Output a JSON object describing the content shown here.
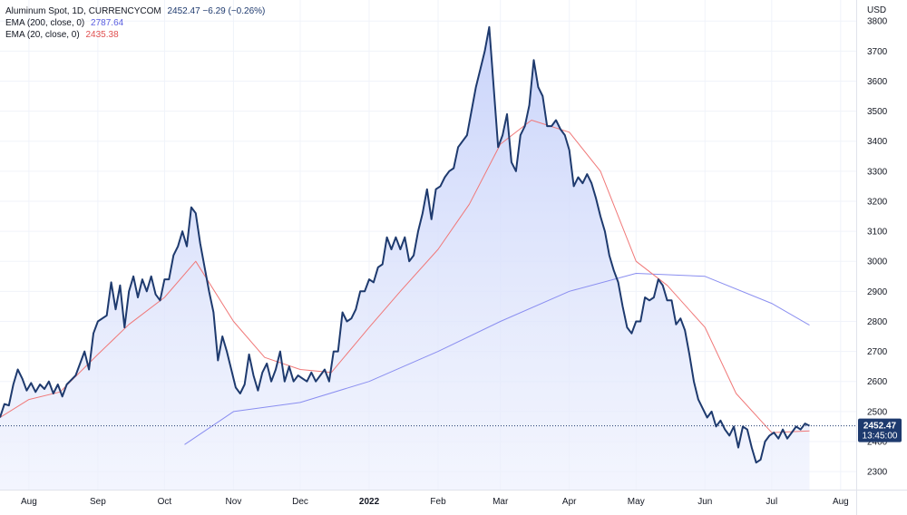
{
  "legend": {
    "main_label": "Aluminum Spot, 1D, CURRENCYCOM",
    "main_values": "2452.47  −6.29 (−0.26%)",
    "ema200_label": "EMA (200, close, 0)",
    "ema200_value": "2787.64",
    "ema20_label": "EMA (20, close, 0)",
    "ema20_value": "2435.38"
  },
  "price_tag": {
    "price": "2452.47",
    "countdown": "13:45:00"
  },
  "colors": {
    "price_line": "#1e3a6e",
    "area_top": "#c7d2fa",
    "area_bottom": "#eef1fd",
    "ema20": "#f07878",
    "ema200": "#8a8ef0",
    "tag_bg": "#1e3a6e",
    "grid": "#f0f3fa",
    "axis_border": "#e0e3eb"
  },
  "chart_data": {
    "type": "line",
    "ylabel": "USD",
    "ylim": [
      2240,
      3870
    ],
    "yticks": [
      2300,
      2400,
      2500,
      2600,
      2700,
      2800,
      2900,
      3000,
      3100,
      3200,
      3300,
      3400,
      3500,
      3600,
      3700,
      3800
    ],
    "xticks": [
      "Aug",
      "Sep",
      "Oct",
      "Nov",
      "Dec",
      "2022",
      "Feb",
      "Mar",
      "Apr",
      "May",
      "Jun",
      "Jul",
      "Aug"
    ],
    "xlim": [
      "2021-07-19",
      "2022-08-08"
    ],
    "x_tick_dates": [
      "2021-08-01",
      "2021-09-01",
      "2021-10-01",
      "2021-11-01",
      "2021-12-01",
      "2022-01-01",
      "2022-02-01",
      "2022-03-01",
      "2022-04-01",
      "2022-05-01",
      "2022-06-01",
      "2022-07-01",
      "2022-08-01"
    ],
    "last_price": 2452.47,
    "grid": true,
    "series": [
      {
        "name": "Aluminum Spot",
        "style": "area",
        "points": [
          [
            "2021-07-19",
            2480
          ],
          [
            "2021-07-21",
            2525
          ],
          [
            "2021-07-23",
            2520
          ],
          [
            "2021-07-25",
            2590
          ],
          [
            "2021-07-27",
            2640
          ],
          [
            "2021-07-29",
            2610
          ],
          [
            "2021-07-31",
            2570
          ],
          [
            "2021-08-02",
            2595
          ],
          [
            "2021-08-04",
            2565
          ],
          [
            "2021-08-06",
            2590
          ],
          [
            "2021-08-08",
            2575
          ],
          [
            "2021-08-10",
            2600
          ],
          [
            "2021-08-12",
            2560
          ],
          [
            "2021-08-14",
            2590
          ],
          [
            "2021-08-16",
            2550
          ],
          [
            "2021-08-18",
            2590
          ],
          [
            "2021-08-20",
            2605
          ],
          [
            "2021-08-22",
            2620
          ],
          [
            "2021-08-24",
            2660
          ],
          [
            "2021-08-26",
            2700
          ],
          [
            "2021-08-28",
            2640
          ],
          [
            "2021-08-30",
            2760
          ],
          [
            "2021-09-01",
            2800
          ],
          [
            "2021-09-03",
            2810
          ],
          [
            "2021-09-05",
            2820
          ],
          [
            "2021-09-07",
            2930
          ],
          [
            "2021-09-09",
            2840
          ],
          [
            "2021-09-11",
            2920
          ],
          [
            "2021-09-13",
            2780
          ],
          [
            "2021-09-15",
            2900
          ],
          [
            "2021-09-17",
            2950
          ],
          [
            "2021-09-19",
            2880
          ],
          [
            "2021-09-21",
            2940
          ],
          [
            "2021-09-23",
            2900
          ],
          [
            "2021-09-25",
            2950
          ],
          [
            "2021-09-27",
            2890
          ],
          [
            "2021-09-29",
            2870
          ],
          [
            "2021-10-01",
            2940
          ],
          [
            "2021-10-03",
            2940
          ],
          [
            "2021-10-05",
            3020
          ],
          [
            "2021-10-07",
            3050
          ],
          [
            "2021-10-09",
            3100
          ],
          [
            "2021-10-11",
            3050
          ],
          [
            "2021-10-13",
            3180
          ],
          [
            "2021-10-15",
            3160
          ],
          [
            "2021-10-17",
            3060
          ],
          [
            "2021-10-19",
            2980
          ],
          [
            "2021-10-21",
            2900
          ],
          [
            "2021-10-23",
            2830
          ],
          [
            "2021-10-25",
            2670
          ],
          [
            "2021-10-27",
            2750
          ],
          [
            "2021-10-29",
            2700
          ],
          [
            "2021-10-31",
            2640
          ],
          [
            "2021-11-02",
            2580
          ],
          [
            "2021-11-04",
            2560
          ],
          [
            "2021-11-06",
            2590
          ],
          [
            "2021-11-08",
            2690
          ],
          [
            "2021-11-10",
            2620
          ],
          [
            "2021-11-12",
            2570
          ],
          [
            "2021-11-14",
            2630
          ],
          [
            "2021-11-16",
            2660
          ],
          [
            "2021-11-18",
            2600
          ],
          [
            "2021-11-20",
            2640
          ],
          [
            "2021-11-22",
            2700
          ],
          [
            "2021-11-24",
            2600
          ],
          [
            "2021-11-26",
            2650
          ],
          [
            "2021-11-28",
            2600
          ],
          [
            "2021-11-30",
            2620
          ],
          [
            "2021-12-02",
            2610
          ],
          [
            "2021-12-04",
            2600
          ],
          [
            "2021-12-06",
            2630
          ],
          [
            "2021-12-08",
            2600
          ],
          [
            "2021-12-10",
            2620
          ],
          [
            "2021-12-12",
            2640
          ],
          [
            "2021-12-14",
            2600
          ],
          [
            "2021-12-16",
            2700
          ],
          [
            "2021-12-18",
            2700
          ],
          [
            "2021-12-20",
            2830
          ],
          [
            "2021-12-22",
            2800
          ],
          [
            "2021-12-24",
            2810
          ],
          [
            "2021-12-26",
            2840
          ],
          [
            "2021-12-28",
            2900
          ],
          [
            "2021-12-30",
            2900
          ],
          [
            "2022-01-01",
            2940
          ],
          [
            "2022-01-03",
            2930
          ],
          [
            "2022-01-05",
            2980
          ],
          [
            "2022-01-07",
            2990
          ],
          [
            "2022-01-09",
            3080
          ],
          [
            "2022-01-11",
            3040
          ],
          [
            "2022-01-13",
            3080
          ],
          [
            "2022-01-15",
            3040
          ],
          [
            "2022-01-17",
            3080
          ],
          [
            "2022-01-19",
            3000
          ],
          [
            "2022-01-21",
            3020
          ],
          [
            "2022-01-23",
            3100
          ],
          [
            "2022-01-25",
            3160
          ],
          [
            "2022-01-27",
            3240
          ],
          [
            "2022-01-29",
            3140
          ],
          [
            "2022-01-31",
            3240
          ],
          [
            "2022-02-02",
            3250
          ],
          [
            "2022-02-04",
            3280
          ],
          [
            "2022-02-06",
            3300
          ],
          [
            "2022-02-08",
            3310
          ],
          [
            "2022-02-10",
            3380
          ],
          [
            "2022-02-12",
            3400
          ],
          [
            "2022-02-14",
            3420
          ],
          [
            "2022-02-16",
            3500
          ],
          [
            "2022-02-18",
            3580
          ],
          [
            "2022-02-20",
            3640
          ],
          [
            "2022-02-22",
            3700
          ],
          [
            "2022-02-24",
            3780
          ],
          [
            "2022-02-26",
            3580
          ],
          [
            "2022-02-28",
            3380
          ],
          [
            "2022-03-02",
            3420
          ],
          [
            "2022-03-04",
            3490
          ],
          [
            "2022-03-06",
            3330
          ],
          [
            "2022-03-08",
            3300
          ],
          [
            "2022-03-10",
            3420
          ],
          [
            "2022-03-12",
            3450
          ],
          [
            "2022-03-14",
            3520
          ],
          [
            "2022-03-16",
            3670
          ],
          [
            "2022-03-18",
            3580
          ],
          [
            "2022-03-20",
            3550
          ],
          [
            "2022-03-22",
            3450
          ],
          [
            "2022-03-24",
            3450
          ],
          [
            "2022-03-26",
            3470
          ],
          [
            "2022-03-28",
            3440
          ],
          [
            "2022-03-30",
            3420
          ],
          [
            "2022-04-01",
            3370
          ],
          [
            "2022-04-03",
            3250
          ],
          [
            "2022-04-05",
            3280
          ],
          [
            "2022-04-07",
            3260
          ],
          [
            "2022-04-09",
            3290
          ],
          [
            "2022-04-11",
            3260
          ],
          [
            "2022-04-13",
            3210
          ],
          [
            "2022-04-15",
            3150
          ],
          [
            "2022-04-17",
            3100
          ],
          [
            "2022-04-19",
            3020
          ],
          [
            "2022-04-21",
            2970
          ],
          [
            "2022-04-23",
            2930
          ],
          [
            "2022-04-25",
            2850
          ],
          [
            "2022-04-27",
            2780
          ],
          [
            "2022-04-29",
            2760
          ],
          [
            "2022-05-01",
            2800
          ],
          [
            "2022-05-03",
            2800
          ],
          [
            "2022-05-05",
            2880
          ],
          [
            "2022-05-07",
            2870
          ],
          [
            "2022-05-09",
            2880
          ],
          [
            "2022-05-11",
            2940
          ],
          [
            "2022-05-13",
            2920
          ],
          [
            "2022-05-15",
            2870
          ],
          [
            "2022-05-17",
            2870
          ],
          [
            "2022-05-19",
            2790
          ],
          [
            "2022-05-21",
            2810
          ],
          [
            "2022-05-23",
            2770
          ],
          [
            "2022-05-25",
            2690
          ],
          [
            "2022-05-27",
            2600
          ],
          [
            "2022-05-29",
            2540
          ],
          [
            "2022-05-31",
            2510
          ],
          [
            "2022-06-02",
            2480
          ],
          [
            "2022-06-04",
            2500
          ],
          [
            "2022-06-06",
            2450
          ],
          [
            "2022-06-08",
            2470
          ],
          [
            "2022-06-10",
            2440
          ],
          [
            "2022-06-12",
            2420
          ],
          [
            "2022-06-14",
            2450
          ],
          [
            "2022-06-16",
            2380
          ],
          [
            "2022-06-18",
            2450
          ],
          [
            "2022-06-20",
            2440
          ],
          [
            "2022-06-22",
            2380
          ],
          [
            "2022-06-24",
            2330
          ],
          [
            "2022-06-26",
            2340
          ],
          [
            "2022-06-28",
            2400
          ],
          [
            "2022-06-30",
            2420
          ],
          [
            "2022-07-02",
            2430
          ],
          [
            "2022-07-04",
            2410
          ],
          [
            "2022-07-06",
            2440
          ],
          [
            "2022-07-08",
            2410
          ],
          [
            "2022-07-10",
            2430
          ],
          [
            "2022-07-12",
            2450
          ],
          [
            "2022-07-14",
            2440
          ],
          [
            "2022-07-16",
            2460
          ],
          [
            "2022-07-18",
            2452.47
          ]
        ]
      },
      {
        "name": "EMA (20, close, 0)",
        "style": "line",
        "points": [
          [
            "2021-07-19",
            2480
          ],
          [
            "2021-08-01",
            2540
          ],
          [
            "2021-08-15",
            2565
          ],
          [
            "2021-09-01",
            2690
          ],
          [
            "2021-09-15",
            2790
          ],
          [
            "2021-10-01",
            2880
          ],
          [
            "2021-10-15",
            3000
          ],
          [
            "2021-11-01",
            2800
          ],
          [
            "2021-11-15",
            2680
          ],
          [
            "2021-12-01",
            2640
          ],
          [
            "2021-12-15",
            2630
          ],
          [
            "2022-01-01",
            2780
          ],
          [
            "2022-01-15",
            2900
          ],
          [
            "2022-02-01",
            3040
          ],
          [
            "2022-02-15",
            3190
          ],
          [
            "2022-03-01",
            3390
          ],
          [
            "2022-03-15",
            3470
          ],
          [
            "2022-04-01",
            3430
          ],
          [
            "2022-04-15",
            3300
          ],
          [
            "2022-05-01",
            3000
          ],
          [
            "2022-05-15",
            2920
          ],
          [
            "2022-06-01",
            2780
          ],
          [
            "2022-06-15",
            2560
          ],
          [
            "2022-07-01",
            2430
          ],
          [
            "2022-07-18",
            2435.38
          ]
        ]
      },
      {
        "name": "EMA (200, close, 0)",
        "style": "line",
        "points": [
          [
            "2021-10-10",
            2390
          ],
          [
            "2021-11-01",
            2500
          ],
          [
            "2021-12-01",
            2530
          ],
          [
            "2022-01-01",
            2600
          ],
          [
            "2022-02-01",
            2700
          ],
          [
            "2022-03-01",
            2800
          ],
          [
            "2022-04-01",
            2900
          ],
          [
            "2022-05-01",
            2960
          ],
          [
            "2022-06-01",
            2950
          ],
          [
            "2022-07-01",
            2860
          ],
          [
            "2022-07-18",
            2787.64
          ]
        ]
      }
    ]
  }
}
